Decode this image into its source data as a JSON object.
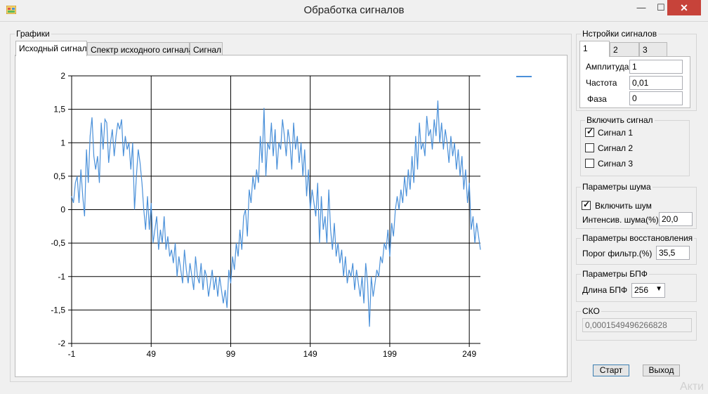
{
  "window": {
    "title": "Обработка сигналов",
    "minimize": "—",
    "maximize": "☐",
    "close": "✕"
  },
  "graphs": {
    "legend": "Графики",
    "tabs": [
      {
        "label": "Исходный сигнал",
        "active": true
      },
      {
        "label": "Спектр исходного сигнала",
        "active": false
      },
      {
        "label": "Сигнал",
        "active": false
      }
    ]
  },
  "chart_data": {
    "type": "line",
    "xlim": [
      -1,
      256
    ],
    "ylim": [
      -2,
      2
    ],
    "x_ticks": [
      -1,
      49,
      99,
      149,
      199,
      249
    ],
    "y_ticks": [
      2,
      1.5,
      1,
      0.5,
      0,
      -0.5,
      -1,
      -1.5,
      -2
    ],
    "x_tick_labels": [
      "-1",
      "49",
      "99",
      "149",
      "199",
      "249"
    ],
    "y_tick_labels": [
      "2",
      "1,5",
      "1",
      "0,5",
      "0",
      "-0,5",
      "-1",
      "-1,5",
      "-2"
    ],
    "grid": true,
    "legend_position": "top-right",
    "series_color": "#4a90d9",
    "series": [
      {
        "values": [
          0.2,
          0.1,
          0.4,
          0.5,
          0.1,
          0.6,
          0.2,
          -0.1,
          0.9,
          0.4,
          1.1,
          1.38,
          0.8,
          0.6,
          0.8,
          0.4,
          1.3,
          0.9,
          1.35,
          1.3,
          0.7,
          1.0,
          1.2,
          0.8,
          1.1,
          1.3,
          1.2,
          1.35,
          0.8,
          1.1,
          0.9,
          1.0,
          0.6,
          1.0,
          0.0,
          0.5,
          0.9,
          0.7,
          0.4,
          0.0,
          -0.3,
          0.2,
          -0.3,
          0.1,
          -0.5,
          -0.3,
          -0.1,
          -0.6,
          -0.3,
          -0.5,
          -0.1,
          -0.6,
          -0.4,
          -0.7,
          -0.6,
          -0.8,
          -0.5,
          -1.0,
          -0.7,
          -0.9,
          -1.1,
          -0.6,
          -0.9,
          -1.1,
          -0.8,
          -1.0,
          -1.2,
          -0.7,
          -1.0,
          -1.1,
          -0.8,
          -1.2,
          -0.9,
          -1.0,
          -1.3,
          -1.1,
          -0.9,
          -1.2,
          -1.0,
          -1.3,
          -1.0,
          -1.2,
          -1.4,
          -1.2,
          -1.47,
          -0.9,
          -1.1,
          -0.7,
          -0.9,
          -0.5,
          -0.7,
          -0.3,
          -0.6,
          -0.1,
          0.0,
          -0.4,
          0.3,
          0.1,
          0.5,
          0.3,
          0.6,
          0.4,
          1.1,
          0.7,
          1.52,
          0.5,
          1.0,
          0.9,
          1.3,
          0.8,
          1.2,
          0.6,
          1.0,
          0.9,
          1.35,
          1.1,
          0.8,
          1.2,
          1.0,
          0.6,
          1.3,
          0.9,
          1.1,
          0.7,
          1.0,
          0.5,
          0.9,
          0.2,
          0.6,
          0.0,
          0.3,
          0.1,
          -0.1,
          0.4,
          -0.5,
          0.2,
          -0.3,
          -0.1,
          -0.5,
          0.3,
          -0.3,
          -0.6,
          -0.2,
          -0.7,
          -0.5,
          -0.8,
          -0.6,
          -1.0,
          -0.7,
          -1.1,
          -0.9,
          -1.0,
          -0.8,
          -1.2,
          -0.9,
          -1.1,
          -1.3,
          -1.0,
          -1.4,
          -0.8,
          -1.1,
          -1.75,
          -1.0,
          -1.3,
          -1.1,
          -0.9,
          -1.0,
          -0.7,
          -0.8,
          -0.5,
          -0.6,
          -0.3,
          -0.7,
          -0.2,
          -0.4,
          0.0,
          0.2,
          0.0,
          0.3,
          0.1,
          0.5,
          0.2,
          0.6,
          0.3,
          0.8,
          0.4,
          1.1,
          0.6,
          1.3,
          0.9,
          1.0,
          0.8,
          1.4,
          1.1,
          1.2,
          0.9,
          1.35,
          1.1,
          1.63,
          1.0,
          1.3,
          0.9,
          1.2,
          1.0,
          0.7,
          1.1,
          0.8,
          1.0,
          0.6,
          0.9,
          0.5,
          0.8,
          0.3,
          0.6,
          0.1,
          0.4,
          -0.3,
          -0.1,
          -0.5,
          -0.2,
          -0.4,
          -0.6
        ]
      }
    ]
  },
  "signal_settings": {
    "legend": "Нстройки сигналов",
    "tabs": [
      "1",
      "2",
      "3"
    ],
    "amplitude_label": "Амплитуда",
    "amplitude_value": "1",
    "frequency_label": "Частота",
    "frequency_value": "0,01",
    "phase_label": "Фаза",
    "phase_value": "0"
  },
  "enable_signal": {
    "legend": "Включить сигнал",
    "items": [
      {
        "label": "Сигнал 1",
        "checked": true
      },
      {
        "label": "Сигнал 2",
        "checked": false
      },
      {
        "label": "Сигнал 3",
        "checked": false
      }
    ]
  },
  "noise": {
    "legend": "Параметры шума",
    "enable_label": "Включить шум",
    "enable_checked": true,
    "intensity_label": "Интенсив. шума(%)",
    "intensity_value": "20,0"
  },
  "restore": {
    "legend": "Параметры восстановления",
    "threshold_label": "Порог фильтр.(%)",
    "threshold_value": "35,5"
  },
  "fft": {
    "legend": "Параметры БПФ",
    "length_label": "Длина БПФ",
    "length_value": "256"
  },
  "sko": {
    "legend": "СКО",
    "value": "0,0001549496266828"
  },
  "buttons": {
    "start": "Старт",
    "exit": "Выход"
  },
  "watermark": "Акти"
}
